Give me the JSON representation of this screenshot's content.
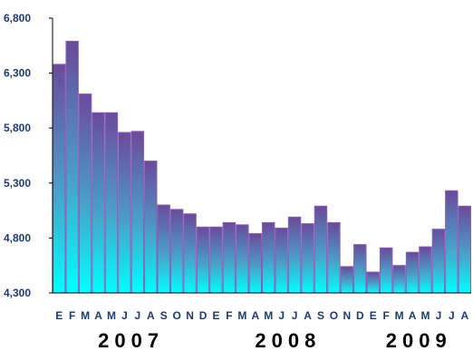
{
  "chart_data": {
    "type": "bar",
    "title": "",
    "xlabel": "",
    "ylabel": "",
    "ylim": [
      4300,
      6800
    ],
    "yticks": [
      "4,300",
      "4,800",
      "5,300",
      "5,800",
      "6,300",
      "6,800"
    ],
    "ytick_values": [
      4300,
      4800,
      5300,
      5800,
      6300,
      6800
    ],
    "categories": [
      "E",
      "F",
      "M",
      "A",
      "M",
      "J",
      "J",
      "A",
      "S",
      "O",
      "N",
      "D",
      "E",
      "F",
      "M",
      "A",
      "M",
      "J",
      "J",
      "A",
      "S",
      "O",
      "N",
      "D",
      "E",
      "F",
      "M",
      "A",
      "M",
      "J",
      "J",
      "A"
    ],
    "values": [
      6380,
      6590,
      6110,
      5940,
      5940,
      5760,
      5770,
      5500,
      5100,
      5060,
      5020,
      4900,
      4900,
      4940,
      4920,
      4840,
      4940,
      4890,
      4990,
      4930,
      5090,
      4940,
      4540,
      4740,
      4490,
      4710,
      4550,
      4670,
      4720,
      4880,
      5230,
      5090
    ],
    "years": [
      {
        "label": "2007",
        "start": 0,
        "end": 11
      },
      {
        "label": "2008",
        "start": 12,
        "end": 23
      },
      {
        "label": "2009",
        "start": 24,
        "end": 31
      }
    ],
    "grid": false,
    "colors": {
      "bar_top": "#6a4a9a",
      "bar_bottom": "#00ffff",
      "bar_stroke": "#8a5fb8",
      "tick_text": "#1f3b73",
      "axis": "#000000"
    }
  }
}
